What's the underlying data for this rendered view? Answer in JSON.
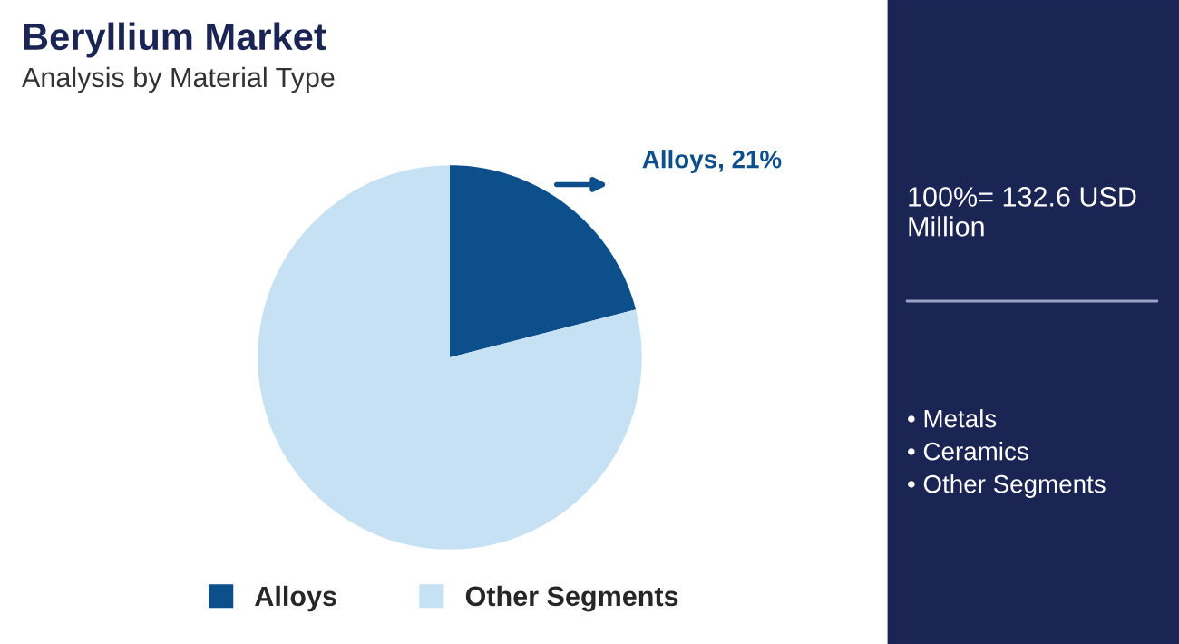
{
  "chart_data": {
    "type": "pie",
    "title": "Beryllium Market",
    "subtitle": "Analysis by Material Type",
    "categories": [
      "Alloys",
      "Other Segments"
    ],
    "values": [
      21,
      79
    ],
    "colors": [
      "#0d4f8b",
      "#c6e1f3"
    ],
    "value_labels": [
      "Alloys, 21%",
      null
    ],
    "legend": "bottom",
    "annotations": [
      "100%= 132.6 USD Million",
      "• Metals",
      "• Ceramics",
      "• Other Segments"
    ]
  }
}
